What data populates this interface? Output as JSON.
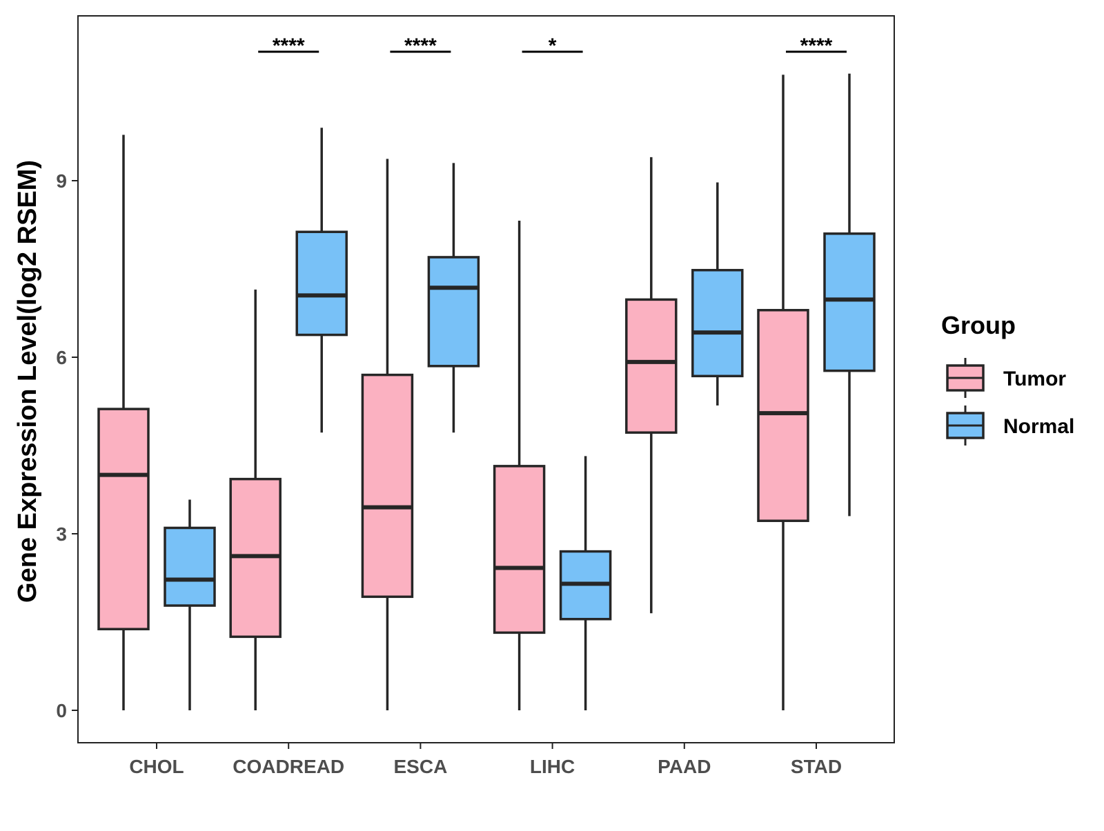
{
  "chart_data": {
    "type": "boxplot",
    "title": "",
    "xlabel": "",
    "ylabel": "Gene Expression Level(log2 RSEM)",
    "ylim": [
      -0.55,
      11.8
    ],
    "yticks": [
      "0",
      "3",
      "6",
      "9"
    ],
    "categories": [
      "CHOL",
      "COADREAD",
      "ESCA",
      "LIHC",
      "PAAD",
      "STAD"
    ],
    "legend": {
      "title": "Group",
      "position": "right"
    },
    "series": [
      {
        "name": "Tumor",
        "color": "#FBB1C1",
        "boxes": [
          {
            "category": "CHOL",
            "whisker_low": 0.0,
            "q1": 1.38,
            "median": 4.0,
            "q3": 5.12,
            "whisker_high": 9.78
          },
          {
            "category": "COADREAD",
            "whisker_low": 0.0,
            "q1": 1.25,
            "median": 2.62,
            "q3": 3.93,
            "whisker_high": 7.15
          },
          {
            "category": "ESCA",
            "whisker_low": 0.0,
            "q1": 1.93,
            "median": 3.45,
            "q3": 5.7,
            "whisker_high": 9.37
          },
          {
            "category": "LIHC",
            "whisker_low": 0.0,
            "q1": 1.32,
            "median": 2.42,
            "q3": 4.15,
            "whisker_high": 8.32
          },
          {
            "category": "PAAD",
            "whisker_low": 1.65,
            "q1": 4.72,
            "median": 5.92,
            "q3": 6.98,
            "whisker_high": 9.4
          },
          {
            "category": "STAD",
            "whisker_low": 0.0,
            "q1": 3.22,
            "median": 5.05,
            "q3": 6.8,
            "whisker_high": 10.8
          }
        ]
      },
      {
        "name": "Normal",
        "color": "#78C1F7",
        "boxes": [
          {
            "category": "CHOL",
            "whisker_low": 0.0,
            "q1": 1.78,
            "median": 2.22,
            "q3": 3.1,
            "whisker_high": 3.58
          },
          {
            "category": "COADREAD",
            "whisker_low": 4.72,
            "q1": 6.38,
            "median": 7.05,
            "q3": 8.13,
            "whisker_high": 9.9
          },
          {
            "category": "ESCA",
            "whisker_low": 4.72,
            "q1": 5.85,
            "median": 7.18,
            "q3": 7.7,
            "whisker_high": 9.3
          },
          {
            "category": "LIHC",
            "whisker_low": 0.0,
            "q1": 1.55,
            "median": 2.15,
            "q3": 2.7,
            "whisker_high": 4.32
          },
          {
            "category": "PAAD",
            "whisker_low": 5.18,
            "q1": 5.68,
            "median": 6.42,
            "q3": 7.48,
            "whisker_high": 8.97
          },
          {
            "category": "STAD",
            "whisker_low": 3.3,
            "q1": 5.77,
            "median": 6.98,
            "q3": 8.1,
            "whisker_high": 10.82
          }
        ]
      }
    ],
    "significance": [
      {
        "category": "COADREAD",
        "label": "****"
      },
      {
        "category": "ESCA",
        "label": "****"
      },
      {
        "category": "LIHC",
        "label": "*"
      },
      {
        "category": "STAD",
        "label": "****"
      }
    ],
    "grid": false
  }
}
